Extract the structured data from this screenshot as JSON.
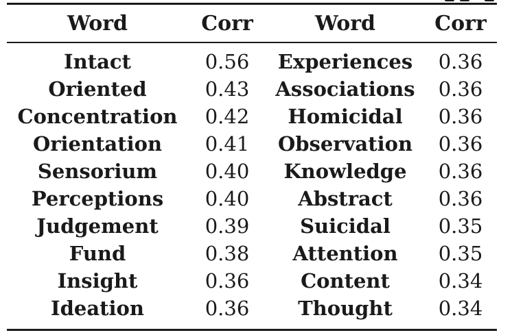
{
  "table": {
    "headers": [
      "Word",
      "Corr",
      "Word",
      "Corr"
    ],
    "rows": [
      [
        "Intact",
        "0.56",
        "Experiences",
        "0.36"
      ],
      [
        "Oriented",
        "0.43",
        "Associations",
        "0.36"
      ],
      [
        "Concentration",
        "0.42",
        "Homicidal",
        "0.36"
      ],
      [
        "Orientation",
        "0.41",
        "Observation",
        "0.36"
      ],
      [
        "Sensorium",
        "0.40",
        "Knowledge",
        "0.36"
      ],
      [
        "Perceptions",
        "0.40",
        "Abstract",
        "0.36"
      ],
      [
        "Judgement",
        "0.39",
        "Suicidal",
        "0.35"
      ],
      [
        "Fund",
        "0.38",
        "Attention",
        "0.35"
      ],
      [
        "Insight",
        "0.36",
        "Content",
        "0.34"
      ],
      [
        "Ideation",
        "0.36",
        "Thought",
        "0.34"
      ]
    ]
  }
}
